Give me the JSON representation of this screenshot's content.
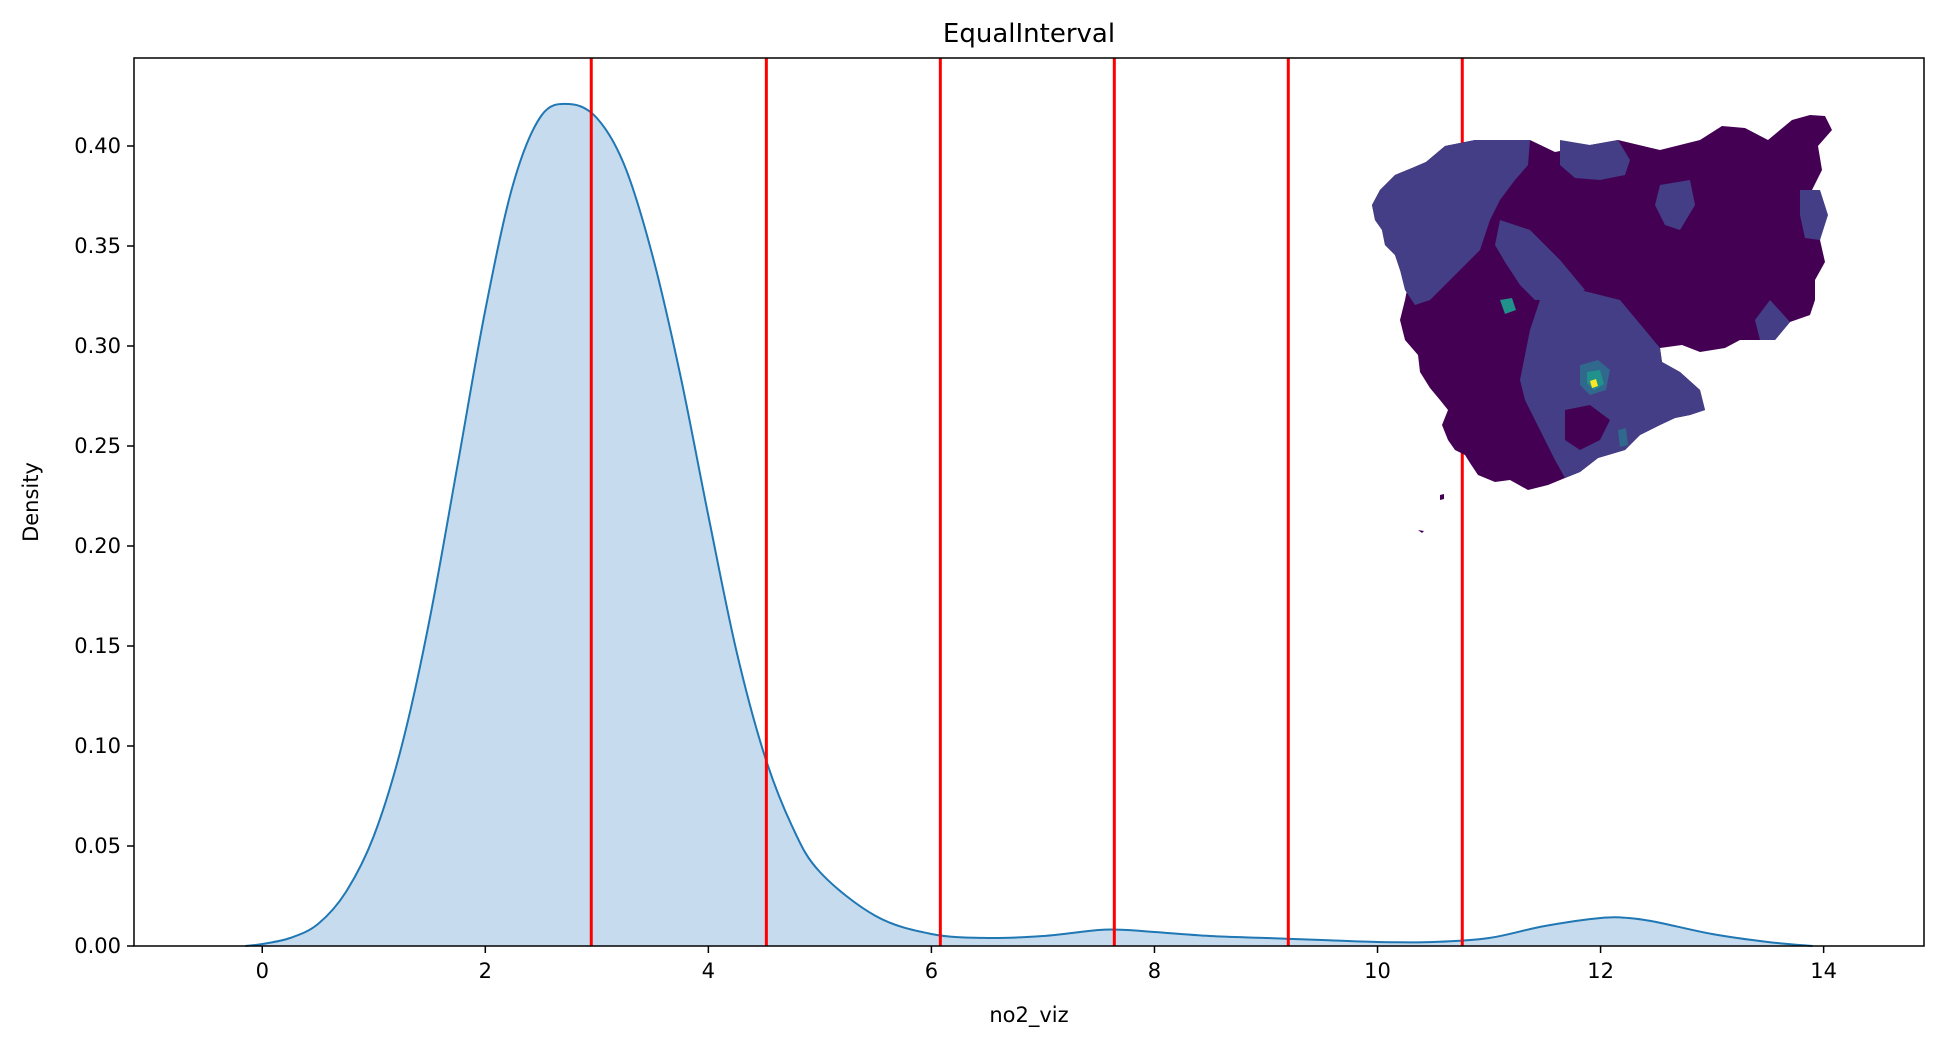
{
  "chart_data": {
    "type": "area",
    "title": "EqualInterval",
    "xlabel": "no2_viz",
    "ylabel": "Density",
    "xlim": [
      -1.15,
      14.9
    ],
    "ylim": [
      0,
      0.444
    ],
    "xticks": [
      "0",
      "2",
      "4",
      "6",
      "8",
      "10",
      "12",
      "14"
    ],
    "yticks": [
      "0.00",
      "0.05",
      "0.10",
      "0.15",
      "0.20",
      "0.25",
      "0.30",
      "0.35",
      "0.40"
    ],
    "grid": false,
    "series": [
      {
        "kind": "kde",
        "color": "#1f77b4",
        "fill": "#c6dbed",
        "x": [
          -0.15,
          0,
          0.25,
          0.5,
          0.75,
          1.0,
          1.25,
          1.5,
          1.75,
          2.0,
          2.25,
          2.5,
          2.75,
          3.0,
          3.25,
          3.5,
          3.75,
          4.0,
          4.25,
          4.5,
          4.75,
          5.0,
          5.5,
          6.0,
          6.5,
          7.0,
          7.5,
          7.75,
          8.0,
          8.5,
          9.0,
          9.5,
          10.0,
          10.5,
          11.0,
          11.5,
          12.0,
          12.25,
          12.5,
          13.0,
          13.5,
          13.9
        ],
        "values": [
          0.0,
          0.001,
          0.004,
          0.011,
          0.027,
          0.055,
          0.1,
          0.163,
          0.24,
          0.318,
          0.381,
          0.415,
          0.421,
          0.414,
          0.39,
          0.345,
          0.285,
          0.215,
          0.148,
          0.096,
          0.06,
          0.037,
          0.015,
          0.006,
          0.004,
          0.005,
          0.008,
          0.008,
          0.007,
          0.005,
          0.004,
          0.003,
          0.002,
          0.002,
          0.004,
          0.01,
          0.014,
          0.014,
          0.012,
          0.006,
          0.002,
          0.0
        ]
      }
    ],
    "vlines": {
      "color": "#ff0000",
      "x": [
        2.95,
        4.52,
        6.08,
        7.64,
        9.2,
        10.76
      ]
    },
    "inset_map": {
      "description_colormap": "viridis",
      "colors": [
        "#440154",
        "#433e85",
        "#31688e",
        "#21918c",
        "#35b779",
        "#fde725"
      ]
    }
  }
}
